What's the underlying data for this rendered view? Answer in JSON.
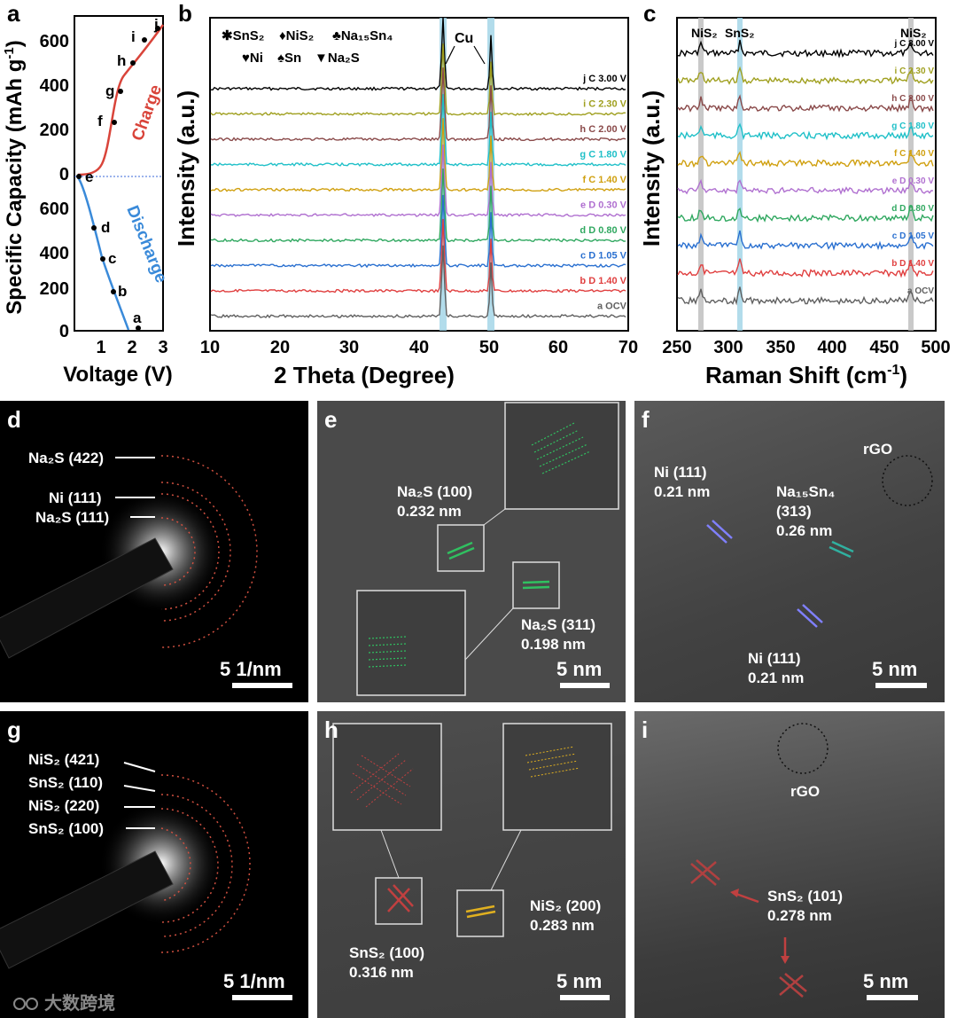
{
  "panels": {
    "a": {
      "label": "a",
      "ylabel": "Specific Capacity (mAh g",
      "ylabel_sup": "-1",
      "ylabel_close": ")",
      "xlabel": "Voltage (V)",
      "yticks_top": [
        "600",
        "400",
        "200",
        "0"
      ],
      "yticks_bottom": [
        "600",
        "400",
        "200",
        "0"
      ],
      "xticks": [
        "1",
        "2",
        "3"
      ],
      "charge_label": "Charge",
      "discharge_label": "Discharge",
      "point_labels": [
        "a",
        "b",
        "c",
        "d",
        "e",
        "f",
        "g",
        "h",
        "i",
        "j"
      ],
      "colors": {
        "charge": "#d9443a",
        "discharge": "#3a8ad9"
      }
    },
    "b": {
      "label": "b",
      "ylabel": "Intensity (a.u.)",
      "xlabel": "2 Theta (Degree)",
      "xticks": [
        "10",
        "20",
        "30",
        "40",
        "50",
        "60",
        "70"
      ],
      "legend_line1": [
        "SnS",
        "NiS",
        "Na",
        "Sn"
      ],
      "legend": {
        "sns2": "SnS₂",
        "nis2": "NiS₂",
        "na15sn4": "Na₁₅Sn₄",
        "ni": "Ni",
        "sn": "Sn",
        "na2s": "Na₂S"
      },
      "cu_label": "Cu",
      "traces": [
        {
          "label": "j C 3.00 V",
          "color": "#000000"
        },
        {
          "label": "i C 2.30 V",
          "color": "#a0a020"
        },
        {
          "label": "h C 2.00 V",
          "color": "#8a4a4a"
        },
        {
          "label": "g C 1.80 V",
          "color": "#20c0c8"
        },
        {
          "label": "f C 1.40 V",
          "color": "#d0a010"
        },
        {
          "label": "e D 0.30 V",
          "color": "#b070d0"
        },
        {
          "label": "d D 0.80 V",
          "color": "#30a860"
        },
        {
          "label": "c D 1.05 V",
          "color": "#2a70d0"
        },
        {
          "label": "b D 1.40 V",
          "color": "#e04040"
        },
        {
          "label": "a OCV",
          "color": "#606060"
        }
      ]
    },
    "c": {
      "label": "c",
      "ylabel": "Intensity (a.u.)",
      "xlabel": "Raman Shift (cm",
      "xlabel_sup": "-1",
      "xlabel_close": ")",
      "xticks": [
        "250",
        "300",
        "350",
        "400",
        "450",
        "500"
      ],
      "peak_labels": [
        "NiS₂",
        "SnS₂",
        "NiS₂"
      ],
      "traces": [
        {
          "label": "j C 3.00 V",
          "color": "#000000"
        },
        {
          "label": "i C 2.30 V",
          "color": "#a0a020"
        },
        {
          "label": "h C 2.00 V",
          "color": "#8a4a4a"
        },
        {
          "label": "g C 1.80 V",
          "color": "#20c0c8"
        },
        {
          "label": "f C 1.40 V",
          "color": "#d0a010"
        },
        {
          "label": "e D 0.30 V",
          "color": "#b070d0"
        },
        {
          "label": "d D 0.80 V",
          "color": "#30a860"
        },
        {
          "label": "c D 1.05 V",
          "color": "#2a70d0"
        },
        {
          "label": "b D 1.40 V",
          "color": "#e04040"
        },
        {
          "label": "a OCV",
          "color": "#606060"
        }
      ]
    },
    "d": {
      "label": "d",
      "rings": [
        "Na₂S (422)",
        "Ni (111)",
        "Na₂S (111)"
      ],
      "scale": "5 1/nm"
    },
    "e": {
      "label": "e",
      "ann1": "Na₂S (100)",
      "ann1_d": "0.232 nm",
      "ann2": "Na₂S (311)",
      "ann2_d": "0.198 nm",
      "scale": "5 nm"
    },
    "f": {
      "label": "f",
      "ann1": "Ni (111)",
      "ann1_d": "0.21 nm",
      "ann2": "Na₁₅Sn₄",
      "ann2b": "(313)",
      "ann2_d": "0.26 nm",
      "ann3": "Ni (111)",
      "ann3_d": "0.21 nm",
      "rgo": "rGO",
      "scale": "5 nm"
    },
    "g": {
      "label": "g",
      "rings": [
        "NiS₂ (421)",
        "SnS₂ (110)",
        "NiS₂ (220)",
        "SnS₂ (100)"
      ],
      "scale": "5 1/nm",
      "watermark": "大数跨境"
    },
    "h": {
      "label": "h",
      "ann1": "NiS₂ (200)",
      "ann1_d": "0.283 nm",
      "ann2": "SnS₂ (100)",
      "ann2_d": "0.316 nm",
      "scale": "5 nm"
    },
    "i": {
      "label": "i",
      "rgo": "rGO",
      "ann1": "SnS₂ (101)",
      "ann1_d": "0.278 nm",
      "scale": "5 nm"
    }
  }
}
